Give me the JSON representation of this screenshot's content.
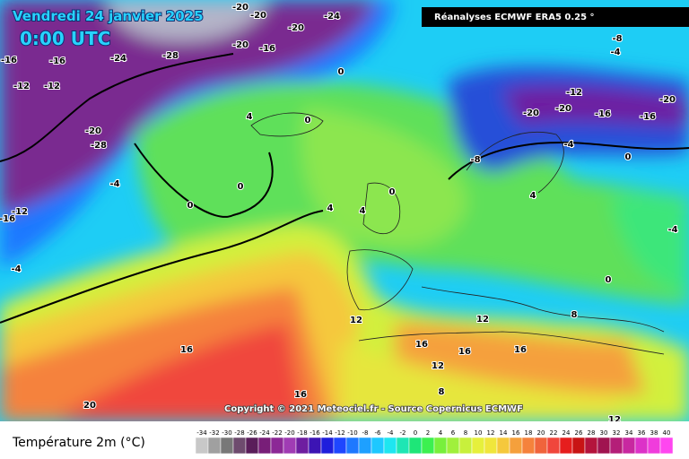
{
  "map": {
    "title": "Vendredi 24 janvier 2025",
    "time": "0:00 UTC",
    "source_box": "Réanalyses ECMWF ERA5 0.25 °",
    "copyright": "Copyright © 2021 Meteociel.fr - Source Copernicus ECMWF",
    "contour_labels": [
      -20,
      -20,
      -20,
      -24,
      -16,
      -20,
      -28,
      -24,
      -16,
      -16,
      -12,
      -12,
      -20,
      -28,
      -4,
      0,
      4,
      0,
      0,
      0,
      -12,
      -16,
      -4,
      4,
      4,
      0,
      16,
      16,
      20,
      12,
      16,
      12,
      8,
      16,
      12,
      16,
      8,
      0,
      -4,
      -8,
      -12,
      -20,
      -20,
      -16,
      -16,
      -20,
      -8,
      -4,
      -4,
      4,
      0,
      12
    ]
  },
  "legend": {
    "title": "Température 2m (°C)",
    "ticks": [
      -34,
      -32,
      -30,
      -28,
      -26,
      -24,
      -22,
      -20,
      -18,
      -16,
      -14,
      -12,
      -10,
      -8,
      -6,
      -4,
      -2,
      0,
      2,
      4,
      6,
      8,
      10,
      12,
      14,
      16,
      18,
      20,
      22,
      24,
      26,
      28,
      30,
      32,
      34,
      36,
      38,
      40
    ],
    "colors": [
      "#c8c8c8",
      "#a0a0a0",
      "#787878",
      "#6e4b6e",
      "#5a1e5a",
      "#781e78",
      "#8c2896",
      "#a03cb4",
      "#6e1ea0",
      "#3c14b4",
      "#1e1edc",
      "#1e46ff",
      "#1e78ff",
      "#1ea0ff",
      "#1ec8ff",
      "#1ee6f0",
      "#1ee6b4",
      "#1ee678",
      "#3cf050",
      "#78f03c",
      "#a0f03c",
      "#c8f03c",
      "#e6f03c",
      "#f0e63c",
      "#f5c83c",
      "#f5a03c",
      "#f5823c",
      "#f0643c",
      "#f0463c",
      "#e61e1e",
      "#c81414",
      "#b4143c",
      "#a01450",
      "#b41e78",
      "#c828a0",
      "#dc32c8",
      "#f03cdc",
      "#ff46f0"
    ]
  }
}
